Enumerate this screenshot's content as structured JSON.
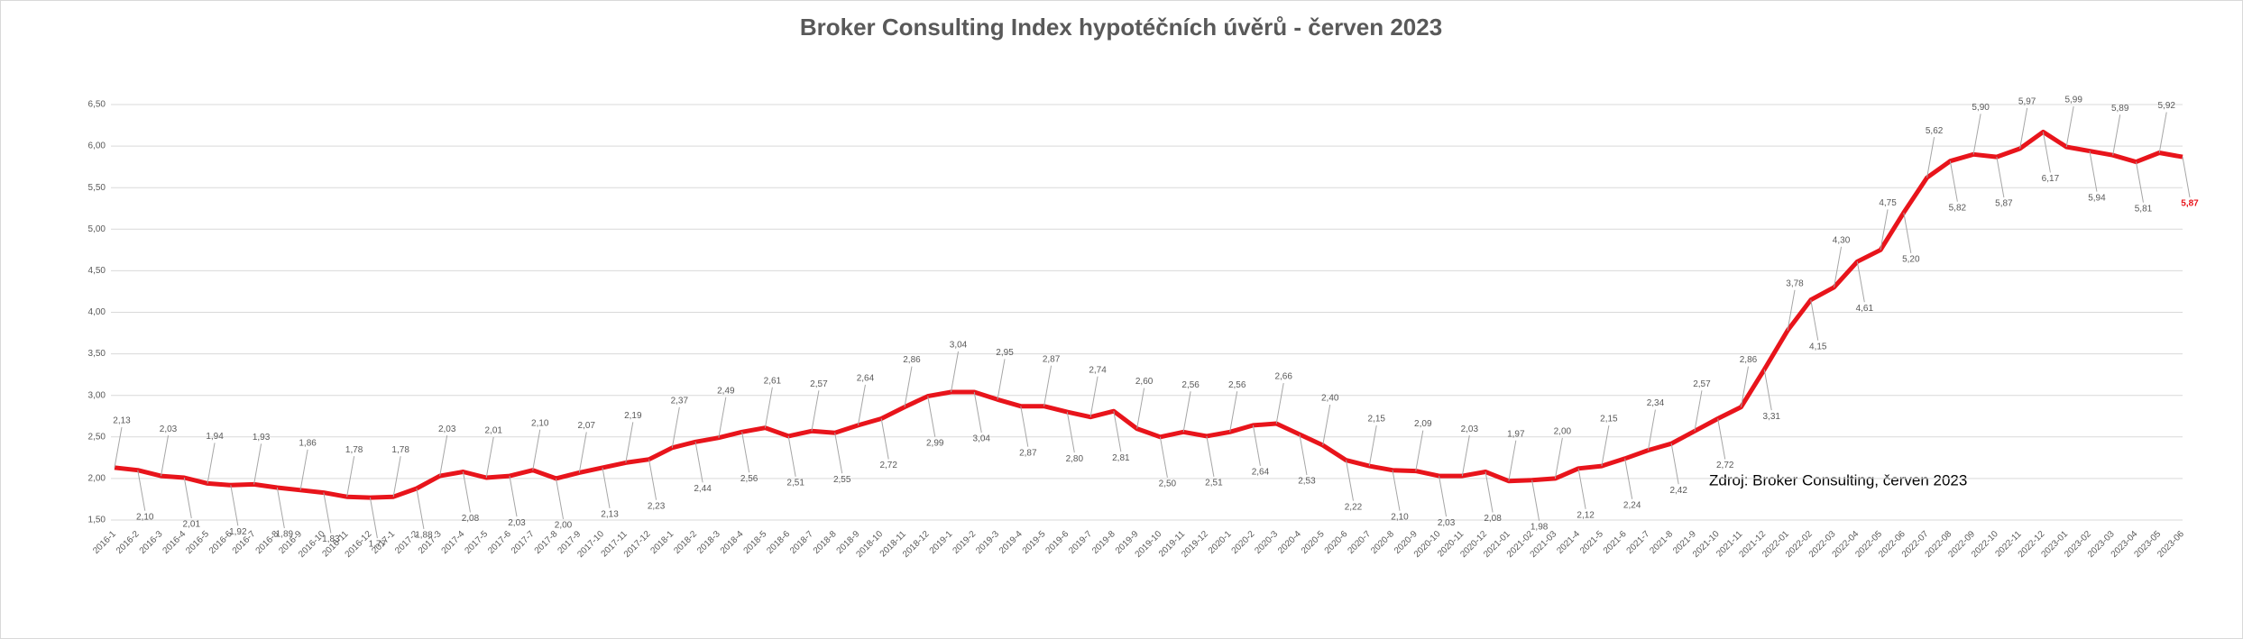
{
  "chart_data": {
    "type": "line",
    "title": "Broker Consulting Index hypotéčních úvěrů - červen 2023",
    "annotation": "Zdroj: Broker Consulting, červen 2023",
    "categories": [
      "2016-1",
      "2016-2",
      "2016-3",
      "2016-4",
      "2016-5",
      "2016-6",
      "2016-7",
      "2016-8",
      "2016-9",
      "2016-10",
      "2016-11",
      "2016-12",
      "2017-1",
      "2017-2",
      "2017-3",
      "2017-4",
      "2017-5",
      "2017-6",
      "2017-7",
      "2017-8",
      "2017-9",
      "2017-10",
      "2017-11",
      "2017-12",
      "2018-1",
      "2018-2",
      "2018-3",
      "2018-4",
      "2018-5",
      "2018-6",
      "2018-7",
      "2018-8",
      "2018-9",
      "2018-10",
      "2018-11",
      "2018-12",
      "2019-1",
      "2019-2",
      "2019-3",
      "2019-4",
      "2019-5",
      "2019-6",
      "2019-7",
      "2019-8",
      "2019-9",
      "2019-10",
      "2019-11",
      "2019-12",
      "2020-1",
      "2020-2",
      "2020-3",
      "2020-4",
      "2020-5",
      "2020-6",
      "2020-7",
      "2020-8",
      "2020-9",
      "2020-10",
      "2020-11",
      "2020-12",
      "2021-01",
      "2021-02",
      "2021-03",
      "2021-4",
      "2021-5",
      "2021-6",
      "2021-7",
      "2021-8",
      "2021-9",
      "2021-10",
      "2021-11",
      "2021-12",
      "2022-01",
      "2022-02",
      "2022-03",
      "2022-04",
      "2022-05",
      "2022-06",
      "2022-07",
      "2022-08",
      "2022-09",
      "2022-10",
      "2022-11",
      "2022-12",
      "2023-01",
      "2023-02",
      "2023-03",
      "2023-04",
      "2023-05",
      "2023-06"
    ],
    "values": [
      2.13,
      2.1,
      2.03,
      2.01,
      1.94,
      1.92,
      1.93,
      1.89,
      1.86,
      1.83,
      1.78,
      1.77,
      1.78,
      1.88,
      2.03,
      2.08,
      2.01,
      2.03,
      2.1,
      2.0,
      2.07,
      2.13,
      2.19,
      2.23,
      2.37,
      2.44,
      2.49,
      2.56,
      2.61,
      2.51,
      2.57,
      2.55,
      2.64,
      2.72,
      2.86,
      2.99,
      3.04,
      3.04,
      2.95,
      2.87,
      2.87,
      2.8,
      2.74,
      2.81,
      2.6,
      2.5,
      2.56,
      2.51,
      2.56,
      2.64,
      2.66,
      2.53,
      2.4,
      2.22,
      2.15,
      2.1,
      2.09,
      2.03,
      2.03,
      2.08,
      1.97,
      1.98,
      2.0,
      2.12,
      2.15,
      2.24,
      2.34,
      2.42,
      2.57,
      2.72,
      2.86,
      3.31,
      3.78,
      4.15,
      4.3,
      4.61,
      4.75,
      5.2,
      5.62,
      5.82,
      5.9,
      5.87,
      5.97,
      6.17,
      5.99,
      5.94,
      5.89,
      5.81,
      5.92,
      5.87
    ],
    "value_labels": [
      "2,13",
      "2,10",
      "2,03",
      "2,01",
      "1,94",
      "1,92",
      "1,93",
      "1,89",
      "1,86",
      "1,83",
      "1,78",
      "1,77",
      "1,78",
      "1,88",
      "2,03",
      "2,08",
      "2,01",
      "2,03",
      "2,10",
      "2,00",
      "2,07",
      "2,13",
      "2,19",
      "2,23",
      "2,37",
      "2,44",
      "2,49",
      "2,56",
      "2,61",
      "2,51",
      "2,57",
      "2,55",
      "2,64",
      "2,72",
      "2,86",
      "2,99",
      "3,04",
      "3,04",
      "2,95",
      "2,87",
      "2,87",
      "2,80",
      "2,74",
      "2,81",
      "2,60",
      "2,50",
      "2,56",
      "2,51",
      "2,56",
      "2,64",
      "2,66",
      "2,53",
      "2,40",
      "2,22",
      "2,15",
      "2,10",
      "2,09",
      "2,03",
      "2,03",
      "2,08",
      "1,97",
      "1,98",
      "2,00",
      "2,12",
      "2,15",
      "2,24",
      "2,34",
      "2,42",
      "2,57",
      "2,72",
      "2,86",
      "3,31",
      "3,78",
      "4,15",
      "4,30",
      "4,61",
      "4,75",
      "5,20",
      "5,62",
      "5,82",
      "5,90",
      "5,87",
      "5,97",
      "6,17",
      "5,99",
      "5,94",
      "5,89",
      "5,81",
      "5,92",
      "5,87"
    ],
    "color": "#e8141b",
    "ylim": [
      1.5,
      6.5
    ],
    "yticks": [
      {
        "value": 1.5,
        "label": "1,50"
      },
      {
        "value": 2,
        "label": "2,00"
      },
      {
        "value": 2.5,
        "label": "2,50"
      },
      {
        "value": 3,
        "label": "3,00"
      },
      {
        "value": 3.5,
        "label": "3,50"
      },
      {
        "value": 4,
        "label": "4,00"
      },
      {
        "value": 4.5,
        "label": "4,50"
      },
      {
        "value": 5,
        "label": "5,00"
      },
      {
        "value": 5.5,
        "label": "5,50"
      },
      {
        "value": 6,
        "label": "6,00"
      },
      {
        "value": 6.5,
        "label": "6,50"
      }
    ],
    "grid": true
  }
}
